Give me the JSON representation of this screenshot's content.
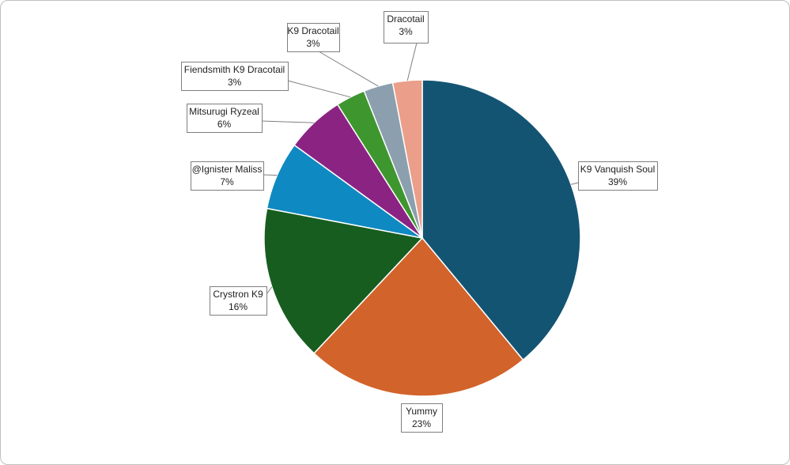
{
  "chart_data": {
    "type": "pie",
    "title": "",
    "series": [
      {
        "categories": [
          "K9 Vanquish Soul",
          "Yummy",
          "Crystron K9",
          "@Ignister Maliss",
          "Mitsurugi Ryzeal",
          "Fiendsmith K9 Dracotail",
          "K9 Dracotail",
          "Dracotail"
        ],
        "values": [
          39,
          23,
          16,
          7,
          6,
          3,
          3,
          3
        ],
        "labels": [
          "39%",
          "23%",
          "16%",
          "7%",
          "6%",
          "3%",
          "3%",
          "3%"
        ],
        "colors": [
          "#145473",
          "#d2632a",
          "#175d20",
          "#0f89c1",
          "#8b2383",
          "#3e962f",
          "#8c9fae",
          "#eb9e89"
        ]
      }
    ],
    "start_angle": "12 o'clock",
    "direction": "clockwise",
    "legend": "none",
    "data_labels": "category name and percentage in callout boxes"
  }
}
